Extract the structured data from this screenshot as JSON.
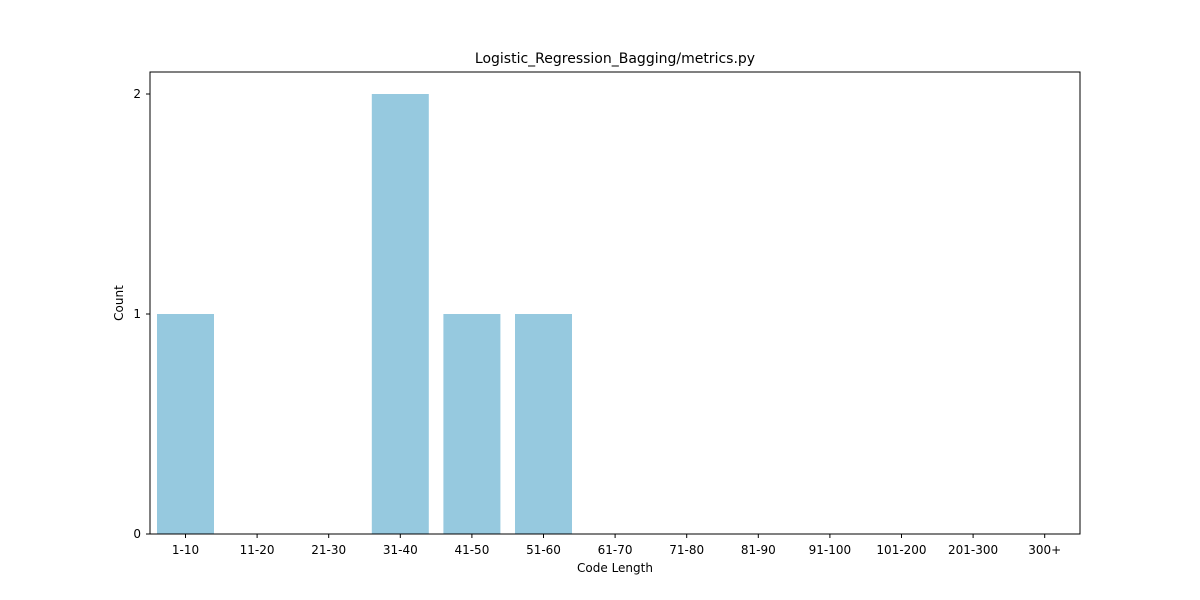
{
  "chart_data": {
    "type": "bar",
    "title": "Logistic_Regression_Bagging/metrics.py",
    "xlabel": "Code Length",
    "ylabel": "Count",
    "categories": [
      "1-10",
      "11-20",
      "21-30",
      "31-40",
      "41-50",
      "51-60",
      "61-70",
      "71-80",
      "81-90",
      "91-100",
      "101-200",
      "201-300",
      "300+"
    ],
    "values": [
      1,
      0,
      0,
      2,
      1,
      1,
      0,
      0,
      0,
      0,
      0,
      0,
      0
    ],
    "yticks": [
      0,
      1,
      2
    ],
    "ytick_labels": [
      "0",
      "1",
      "2"
    ],
    "ylim": [
      0,
      2.1
    ],
    "bar_color": "#96c9df",
    "grid": false,
    "legend": "none"
  }
}
